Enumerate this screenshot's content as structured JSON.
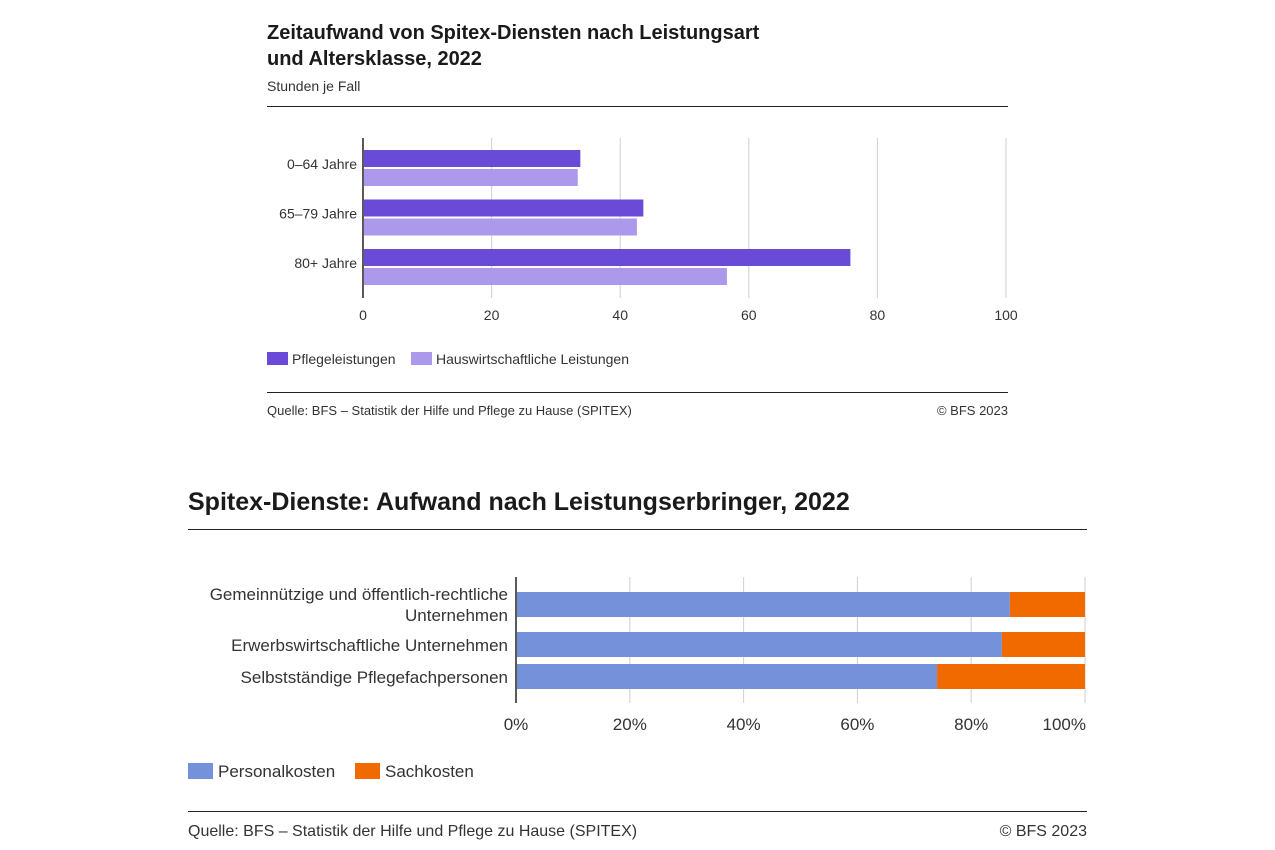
{
  "chart1": {
    "title_line1": "Zeitaufwand von Spitex-Diensten nach Leistungsart",
    "title_line2": "und Altersklasse, 2022",
    "subtitle": "Stunden je Fall",
    "source": "Quelle: BFS – Statistik der Hilfe und Pflege zu Hause (SPITEX)",
    "copyright": "© BFS 2023"
  },
  "chart2": {
    "title": "Spitex-Dienste: Aufwand nach Leistungserbringer, 2022",
    "source": "Quelle: BFS – Statistik der Hilfe und Pflege zu Hause (SPITEX)",
    "copyright": "© BFS 2023"
  },
  "chart_data": [
    {
      "type": "bar",
      "orientation": "horizontal",
      "title": "Zeitaufwand von Spitex-Diensten nach Leistungsart und Altersklasse, 2022",
      "subtitle": "Stunden je Fall",
      "categories": [
        "0–64 Jahre",
        "65–79 Jahre",
        "80+ Jahre"
      ],
      "series": [
        {
          "name": "Pflegeleistungen",
          "color": "#6a4bd8",
          "values": [
            33.8,
            43.6,
            75.8
          ]
        },
        {
          "name": "Hauswirtschaftliche Leistungen",
          "color": "#ad99ec",
          "values": [
            33.4,
            42.6,
            56.6
          ]
        }
      ],
      "xlim": [
        0,
        100
      ],
      "xticks": [
        "0",
        "20",
        "40",
        "60",
        "80",
        "100"
      ],
      "grid": true,
      "legend": "bottom-left"
    },
    {
      "type": "bar",
      "orientation": "horizontal",
      "stacked": true,
      "title": "Spitex-Dienste: Aufwand nach Leistungserbringer, 2022",
      "categories": [
        [
          "Gemeinnützige und öffentlich-rechtliche",
          "Unternehmen"
        ],
        [
          "Erwerbswirtschaftliche Unternehmen"
        ],
        [
          "Selbstständige Pflegefachpersonen"
        ]
      ],
      "series": [
        {
          "name": "Personalkosten",
          "color": "#7591d9",
          "values": [
            86.8,
            85.4,
            74.0
          ]
        },
        {
          "name": "Sachkosten",
          "color": "#f06a00",
          "values": [
            13.2,
            14.6,
            26.0
          ]
        }
      ],
      "xlim": [
        0,
        100
      ],
      "xticks": [
        "0%",
        "20%",
        "40%",
        "60%",
        "80%",
        "100%"
      ],
      "grid": true,
      "legend": "bottom-left"
    }
  ]
}
